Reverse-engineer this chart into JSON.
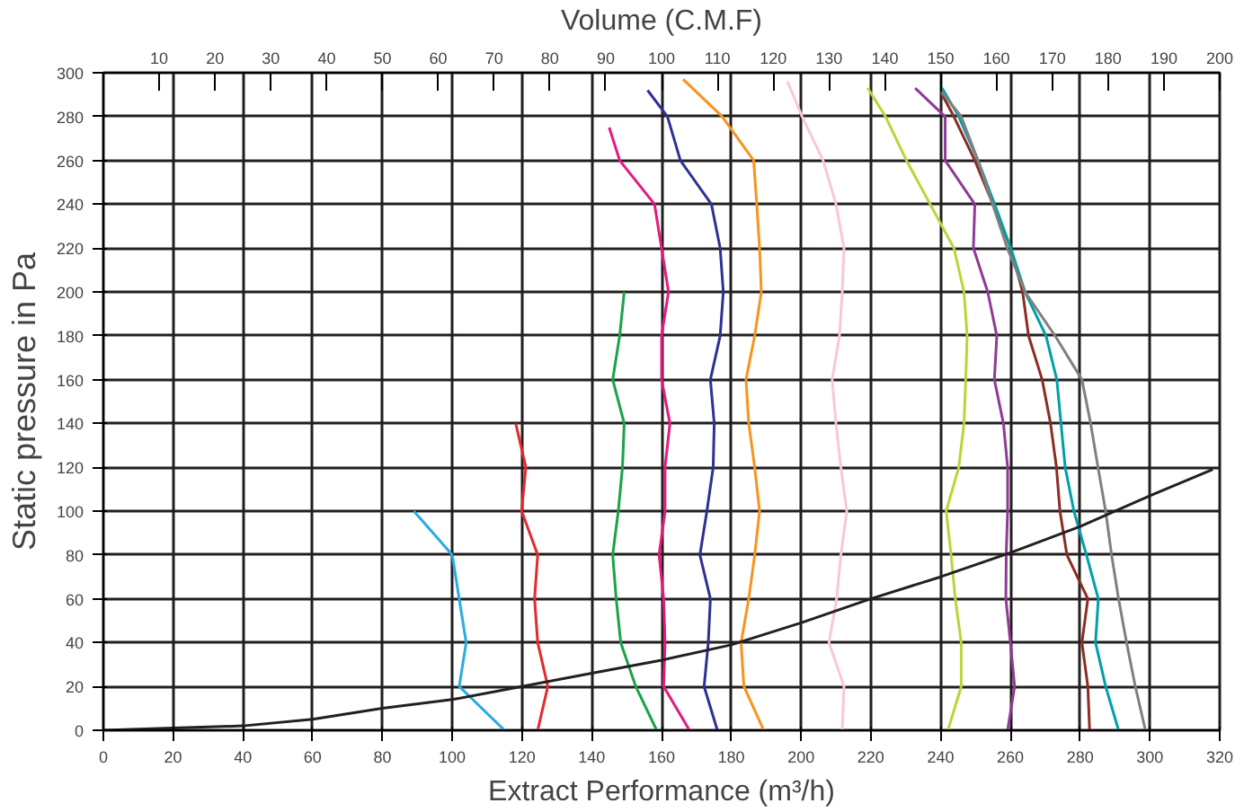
{
  "chart_data": {
    "type": "line",
    "xlabel": "Extract Performance (m³/h)",
    "ylabel": "Static pressure in Pa",
    "x2label": "Volume (C.M.F)",
    "xlim": [
      0,
      320
    ],
    "ylim": [
      0,
      300
    ],
    "x2lim": [
      0,
      200
    ],
    "xticks": [
      0,
      20,
      40,
      60,
      80,
      100,
      120,
      140,
      160,
      180,
      200,
      220,
      240,
      260,
      280,
      300,
      320
    ],
    "yticks": [
      0,
      20,
      40,
      60,
      80,
      100,
      120,
      140,
      160,
      180,
      200,
      220,
      240,
      260,
      280,
      300
    ],
    "x2ticks": [
      10,
      20,
      30,
      40,
      50,
      60,
      70,
      80,
      90,
      100,
      110,
      120,
      130,
      140,
      150,
      160,
      170,
      180,
      190,
      200
    ],
    "grid": true,
    "series": [
      {
        "color": "#29abe2",
        "x": [
          115,
          102,
          104,
          102,
          100,
          89
        ],
        "values": [
          0,
          20,
          40,
          60,
          80,
          100
        ]
      },
      {
        "color": "#e8282b",
        "x": [
          124.5,
          127.4,
          124.5,
          123.6,
          124.5,
          119.9,
          121.1,
          118.2
        ],
        "values": [
          0,
          20,
          40,
          60,
          80,
          100,
          120,
          140
        ]
      },
      {
        "color": "#1aa34a",
        "x": [
          158.6,
          152.6,
          148.3,
          147,
          146,
          147.6,
          148.8,
          149.3,
          146,
          148,
          149.3
        ],
        "values": [
          0,
          20,
          40,
          60,
          80,
          100,
          120,
          140,
          160,
          180,
          200
        ]
      },
      {
        "color": "#e6197f",
        "x": [
          168,
          160.6,
          161,
          160.6,
          159.3,
          161,
          161,
          162.4,
          160,
          160,
          162,
          160,
          158,
          148,
          145
        ],
        "values": [
          0,
          20,
          40,
          60,
          80,
          100,
          120,
          140,
          160,
          180,
          200,
          220,
          240,
          260,
          275
        ]
      },
      {
        "color": "#2e3192",
        "x": [
          176,
          172.2,
          173.4,
          174,
          171,
          173,
          174.8,
          175.1,
          174,
          176.8,
          177.7,
          176.8,
          174.3,
          165.4,
          161.7,
          156
        ],
        "values": [
          0,
          20,
          40,
          60,
          80,
          100,
          120,
          140,
          160,
          180,
          200,
          220,
          240,
          260,
          280,
          292
        ]
      },
      {
        "color": "#f7941d",
        "x": [
          189.3,
          183.6,
          182.8,
          185,
          186.7,
          188.1,
          186.7,
          185,
          184.2,
          186.7,
          188.6,
          188.1,
          187.3,
          186.4,
          177.4,
          166.2
        ],
        "values": [
          0,
          20,
          40,
          60,
          80,
          100,
          120,
          140,
          160,
          180,
          200,
          220,
          240,
          260,
          280,
          297
        ]
      },
      {
        "color": "#f9c7dc",
        "x": [
          211.8,
          212.3,
          208,
          210.2,
          211.4,
          213.1,
          211.4,
          210,
          208.9,
          211,
          211.8,
          212.3,
          210,
          206.3,
          200.3,
          196.1
        ],
        "values": [
          0,
          20,
          40,
          60,
          80,
          100,
          120,
          140,
          160,
          180,
          200,
          220,
          240,
          260,
          280,
          296
        ]
      },
      {
        "color": "#bcd437",
        "x": [
          242.1,
          245.9,
          245.9,
          244.2,
          243,
          241.6,
          245.2,
          246.7,
          247.2,
          247.6,
          246.7,
          243.8,
          237,
          230.2,
          224.2,
          219.1
        ],
        "values": [
          0,
          20,
          40,
          60,
          80,
          100,
          120,
          140,
          160,
          180,
          200,
          220,
          240,
          260,
          280,
          293
        ]
      },
      {
        "color": "#8e3b96",
        "x": [
          259.2,
          261.2,
          260,
          258.7,
          258.8,
          259.2,
          259.2,
          258,
          255.4,
          256.1,
          253.5,
          249.4,
          249.8,
          241.3,
          241.3,
          232.7
        ],
        "values": [
          0,
          20,
          40,
          60,
          80,
          100,
          120,
          140,
          160,
          180,
          200,
          220,
          240,
          260,
          280,
          293
        ]
      },
      {
        "color": "#8b2d23",
        "x": [
          282.7,
          282.2,
          280.5,
          282.2,
          276.2,
          274.2,
          273.2,
          271.5,
          269.1,
          265.2,
          263.5,
          260.1,
          255,
          249.8,
          243.8,
          240.1
        ],
        "values": [
          0,
          20,
          40,
          60,
          80,
          100,
          120,
          140,
          160,
          180,
          200,
          220,
          240,
          260,
          280,
          291
        ]
      },
      {
        "color": "#00a0a8",
        "x": [
          291,
          287.3,
          284.4,
          285.2,
          281.8,
          278.2,
          275.7,
          274.5,
          273.3,
          270.2,
          264.2,
          260.1,
          255.5,
          250.7,
          245.2,
          240.4
        ],
        "values": [
          0,
          20,
          40,
          60,
          80,
          100,
          120,
          140,
          160,
          180,
          200,
          220,
          240,
          260,
          280,
          293
        ]
      },
      {
        "color": "#808080",
        "x": [
          298.7,
          295.8,
          293.3,
          291,
          289,
          287.3,
          285.1,
          283,
          280.5,
          272.8,
          264.2,
          259.1,
          254.9,
          250.7,
          245.9,
          240.4
        ],
        "values": [
          0,
          20,
          40,
          60,
          80,
          100,
          120,
          140,
          160,
          180,
          200,
          220,
          240,
          260,
          280,
          291
        ]
      },
      {
        "color": "#231f20",
        "x": [
          0,
          20,
          40,
          60,
          80,
          100,
          120,
          140,
          160,
          180,
          200,
          220,
          240,
          260,
          280,
          300,
          318
        ],
        "values": [
          0,
          1,
          2,
          5,
          10,
          14,
          20,
          26,
          32,
          39,
          49,
          60,
          70,
          81,
          93,
          107,
          119
        ]
      }
    ]
  }
}
